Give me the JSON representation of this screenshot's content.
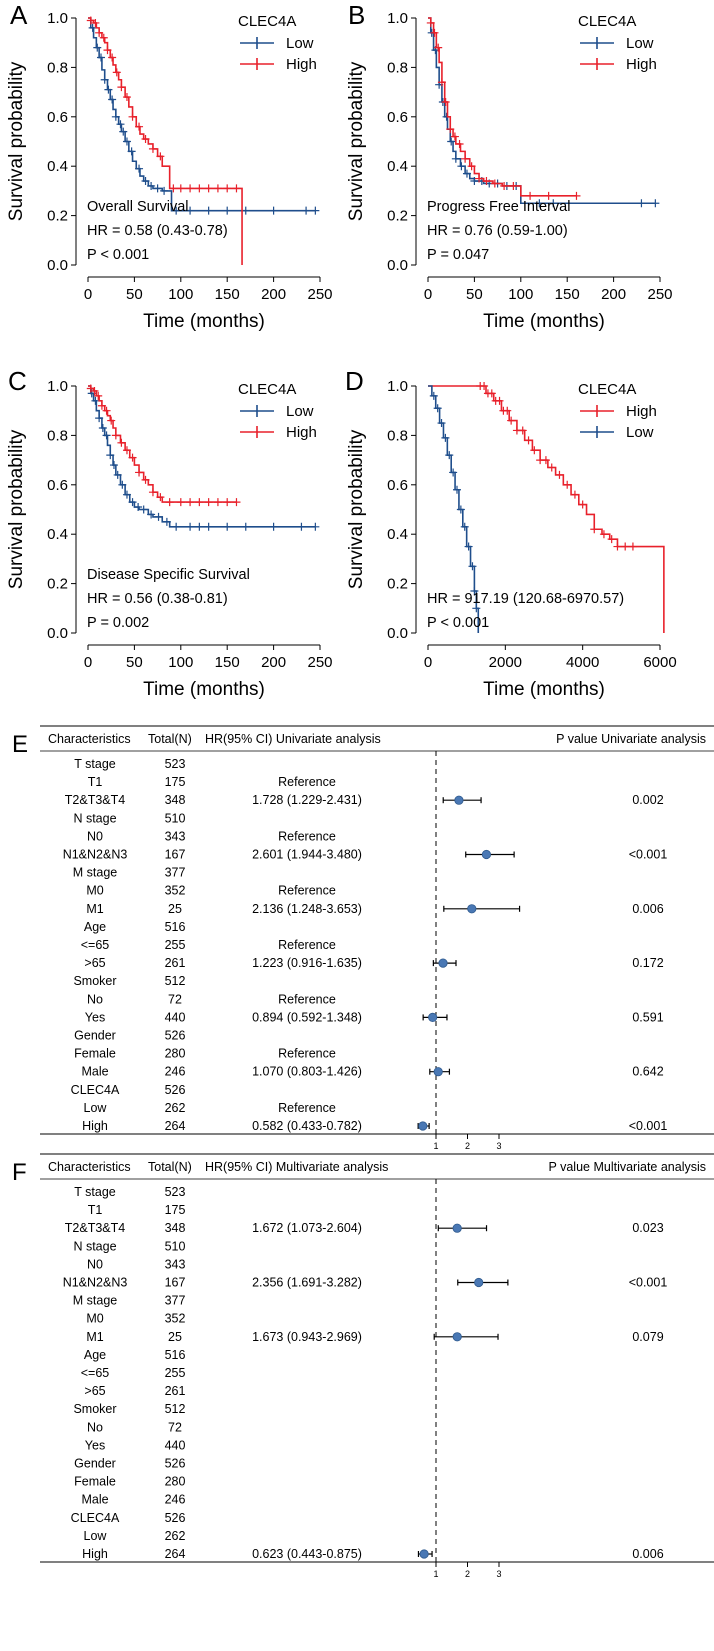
{
  "chart_data": [
    {
      "panel": "A",
      "type": "line",
      "xlabel": "Time (months)",
      "ylabel": "Survival probability",
      "xlim": [
        0,
        250
      ],
      "ylim": [
        0,
        1
      ],
      "xticks": [
        "0",
        "50",
        "100",
        "150",
        "200",
        "250"
      ],
      "yticks": [
        "0.0",
        "0.2",
        "0.4",
        "0.6",
        "0.8",
        "1.0"
      ],
      "legend_title": "CLEC4A",
      "legend_position": "top-right",
      "annotation_lines": [
        "Overall Survival",
        "HR = 0.58 (0.43-0.78)",
        "P < 0.001"
      ],
      "series": [
        {
          "name": "Low",
          "color": "#1f4e8c",
          "x": [
            0,
            3,
            6,
            9,
            12,
            15,
            18,
            21,
            24,
            27,
            30,
            33,
            36,
            40,
            44,
            48,
            52,
            56,
            60,
            65,
            70,
            75,
            80,
            85,
            90,
            120,
            150,
            200,
            245
          ],
          "y": [
            1,
            0.96,
            0.92,
            0.88,
            0.84,
            0.79,
            0.75,
            0.71,
            0.67,
            0.63,
            0.6,
            0.57,
            0.54,
            0.5,
            0.46,
            0.42,
            0.39,
            0.36,
            0.34,
            0.32,
            0.31,
            0.31,
            0.3,
            0.3,
            0.22,
            0.22,
            0.22,
            0.22,
            0.22
          ],
          "censor_x": [
            5,
            10,
            14,
            18,
            22,
            26,
            30,
            35,
            38,
            42,
            47,
            55,
            62,
            68,
            75,
            82,
            95,
            110,
            130,
            150,
            170,
            200,
            235,
            245
          ]
        },
        {
          "name": "High",
          "color": "#e8212b",
          "x": [
            0,
            3,
            6,
            9,
            12,
            15,
            18,
            21,
            24,
            27,
            30,
            33,
            36,
            40,
            44,
            48,
            52,
            56,
            60,
            65,
            70,
            75,
            80,
            88,
            120,
            150,
            166
          ],
          "y": [
            1,
            0.99,
            0.98,
            0.96,
            0.94,
            0.92,
            0.9,
            0.87,
            0.84,
            0.81,
            0.78,
            0.75,
            0.72,
            0.68,
            0.64,
            0.6,
            0.56,
            0.53,
            0.51,
            0.49,
            0.47,
            0.44,
            0.4,
            0.31,
            0.31,
            0.31,
            0
          ],
          "censor_x": [
            3,
            8,
            12,
            17,
            21,
            26,
            31,
            36,
            42,
            48,
            55,
            62,
            70,
            78,
            92,
            100,
            110,
            120,
            130,
            140,
            150,
            160
          ]
        }
      ]
    },
    {
      "panel": "B",
      "type": "line",
      "xlabel": "Time (months)",
      "ylabel": "Survival probability",
      "xlim": [
        0,
        250
      ],
      "ylim": [
        0,
        1
      ],
      "xticks": [
        "0",
        "50",
        "100",
        "150",
        "200",
        "250"
      ],
      "yticks": [
        "0.0",
        "0.2",
        "0.4",
        "0.6",
        "0.8",
        "1.0"
      ],
      "legend_title": "CLEC4A",
      "legend_position": "top-right",
      "annotation_lines": [
        "Progress Free Interval",
        "HR = 0.76 (0.59-1.00)",
        "P = 0.047"
      ],
      "series": [
        {
          "name": "Low",
          "color": "#1f4e8c",
          "x": [
            0,
            3,
            6,
            9,
            12,
            15,
            18,
            21,
            24,
            27,
            30,
            35,
            40,
            45,
            50,
            55,
            60,
            70,
            80,
            90,
            100,
            130,
            160,
            200,
            245
          ],
          "y": [
            1,
            0.94,
            0.87,
            0.8,
            0.73,
            0.66,
            0.6,
            0.55,
            0.5,
            0.46,
            0.43,
            0.4,
            0.37,
            0.35,
            0.34,
            0.34,
            0.33,
            0.33,
            0.32,
            0.32,
            0.25,
            0.25,
            0.25,
            0.25,
            0.25
          ],
          "censor_x": [
            4,
            8,
            12,
            16,
            20,
            25,
            30,
            36,
            42,
            50,
            58,
            66,
            75,
            85,
            95,
            120,
            135,
            230,
            245
          ]
        },
        {
          "name": "High",
          "color": "#e8212b",
          "x": [
            0,
            3,
            6,
            9,
            12,
            15,
            18,
            21,
            24,
            27,
            30,
            35,
            40,
            45,
            50,
            55,
            60,
            70,
            80,
            90,
            100,
            130,
            160
          ],
          "y": [
            1,
            0.98,
            0.94,
            0.88,
            0.82,
            0.74,
            0.66,
            0.6,
            0.55,
            0.52,
            0.49,
            0.46,
            0.43,
            0.4,
            0.37,
            0.35,
            0.34,
            0.33,
            0.32,
            0.32,
            0.28,
            0.28,
            0.28
          ],
          "censor_x": [
            3,
            7,
            11,
            15,
            19,
            24,
            29,
            34,
            40,
            47,
            55,
            63,
            72,
            82,
            92,
            110,
            130,
            160
          ]
        }
      ]
    },
    {
      "panel": "C",
      "type": "line",
      "xlabel": "Time (months)",
      "ylabel": "Survival probability",
      "xlim": [
        0,
        250
      ],
      "ylim": [
        0,
        1
      ],
      "xticks": [
        "0",
        "50",
        "100",
        "150",
        "200",
        "250"
      ],
      "yticks": [
        "0.0",
        "0.2",
        "0.4",
        "0.6",
        "0.8",
        "1.0"
      ],
      "legend_title": "CLEC4A",
      "legend_position": "top-right",
      "annotation_lines": [
        "Disease Specific Survival",
        "HR = 0.56 (0.38-0.81)",
        "P = 0.002"
      ],
      "series": [
        {
          "name": "Low",
          "color": "#1f4e8c",
          "x": [
            0,
            3,
            6,
            9,
            12,
            15,
            18,
            21,
            24,
            27,
            30,
            35,
            40,
            45,
            50,
            55,
            60,
            65,
            70,
            80,
            88,
            120,
            150,
            200,
            245
          ],
          "y": [
            1,
            0.97,
            0.94,
            0.9,
            0.87,
            0.83,
            0.8,
            0.76,
            0.72,
            0.68,
            0.64,
            0.6,
            0.56,
            0.53,
            0.51,
            0.5,
            0.5,
            0.48,
            0.47,
            0.45,
            0.43,
            0.43,
            0.43,
            0.43,
            0.43
          ],
          "censor_x": [
            4,
            8,
            12,
            16,
            20,
            24,
            28,
            32,
            37,
            42,
            48,
            54,
            60,
            68,
            76,
            85,
            95,
            110,
            120,
            130,
            150,
            170,
            200,
            230,
            245
          ]
        },
        {
          "name": "High",
          "color": "#e8212b",
          "x": [
            0,
            3,
            6,
            9,
            12,
            15,
            18,
            21,
            24,
            27,
            30,
            35,
            40,
            45,
            50,
            55,
            60,
            65,
            70,
            75,
            80,
            100,
            130,
            160
          ],
          "y": [
            1,
            0.99,
            0.98,
            0.96,
            0.94,
            0.92,
            0.9,
            0.88,
            0.86,
            0.83,
            0.8,
            0.77,
            0.74,
            0.71,
            0.68,
            0.65,
            0.62,
            0.6,
            0.57,
            0.55,
            0.53,
            0.53,
            0.53,
            0.53
          ],
          "censor_x": [
            3,
            7,
            11,
            15,
            20,
            25,
            30,
            36,
            42,
            48,
            55,
            62,
            70,
            78,
            88,
            100,
            110,
            120,
            130,
            140,
            150,
            160
          ]
        }
      ]
    },
    {
      "panel": "D",
      "type": "line",
      "xlabel": "Time (months)",
      "ylabel": "Survival probability",
      "xlim": [
        0,
        6000
      ],
      "ylim": [
        0,
        1
      ],
      "xticks": [
        "0",
        "2000",
        "4000",
        "6000"
      ],
      "yticks": [
        "0.0",
        "0.2",
        "0.4",
        "0.6",
        "0.8",
        "1.0"
      ],
      "legend_title": "CLEC4A",
      "legend_position": "top-right",
      "annotation_lines": [
        "HR = 917.19 (120.68-6970.57)",
        "P < 0.001"
      ],
      "series": [
        {
          "name": "High",
          "color": "#e8212b",
          "x": [
            0,
            1300,
            1500,
            1700,
            1900,
            2100,
            2300,
            2500,
            2700,
            2900,
            3100,
            3300,
            3500,
            3700,
            3900,
            4100,
            4300,
            4500,
            4700,
            4900,
            5200,
            5600,
            6100,
            6100
          ],
          "y": [
            1,
            1,
            0.97,
            0.94,
            0.9,
            0.86,
            0.82,
            0.78,
            0.74,
            0.7,
            0.67,
            0.64,
            0.6,
            0.56,
            0.52,
            0.48,
            0.42,
            0.4,
            0.38,
            0.35,
            0.35,
            0.35,
            0.35,
            0
          ],
          "censor_x": [
            1350,
            1450,
            1550,
            1650,
            1750,
            1850,
            1950,
            2050,
            2150,
            2300,
            2450,
            2600,
            2750,
            2900,
            3050,
            3200,
            3400,
            3600,
            3800,
            4000,
            4300,
            4550,
            4750,
            4900,
            5100,
            5300
          ]
        },
        {
          "name": "Low",
          "color": "#1f4e8c",
          "x": [
            0,
            100,
            200,
            300,
            400,
            500,
            600,
            700,
            800,
            900,
            1000,
            1100,
            1200,
            1250,
            1300
          ],
          "y": [
            1,
            0.96,
            0.91,
            0.85,
            0.79,
            0.72,
            0.65,
            0.58,
            0.5,
            0.43,
            0.35,
            0.27,
            0.17,
            0.1,
            0
          ],
          "censor_x": [
            150,
            250,
            350,
            450,
            550,
            650,
            750,
            850,
            950,
            1050,
            1150,
            1200,
            1250
          ]
        }
      ]
    },
    {
      "panel": "E",
      "type": "table",
      "headers": [
        "Characteristics",
        "Total(N)",
        "HR(95% CI) Univariate analysis",
        "P value Univariate analysis"
      ],
      "axis_ticks": [
        "1",
        "2",
        "3"
      ],
      "rows": [
        {
          "label": "T stage",
          "n": "523",
          "hr": "",
          "p": "",
          "group": true
        },
        {
          "label": "T1",
          "n": "175",
          "hr": "Reference",
          "p": ""
        },
        {
          "label": "T2&T3&T4",
          "n": "348",
          "hr": "1.728 (1.229-2.431)",
          "p": "0.002",
          "est": 1.728,
          "lo": 1.229,
          "hi": 2.431
        },
        {
          "label": "N stage",
          "n": "510",
          "hr": "",
          "p": "",
          "group": true
        },
        {
          "label": "N0",
          "n": "343",
          "hr": "Reference",
          "p": ""
        },
        {
          "label": "N1&N2&N3",
          "n": "167",
          "hr": "2.601 (1.944-3.480)",
          "p": "<0.001",
          "est": 2.601,
          "lo": 1.944,
          "hi": 3.48
        },
        {
          "label": "M stage",
          "n": "377",
          "hr": "",
          "p": "",
          "group": true
        },
        {
          "label": "M0",
          "n": "352",
          "hr": "Reference",
          "p": ""
        },
        {
          "label": "M1",
          "n": "25",
          "hr": "2.136 (1.248-3.653)",
          "p": "0.006",
          "est": 2.136,
          "lo": 1.248,
          "hi": 3.653
        },
        {
          "label": "Age",
          "n": "516",
          "hr": "",
          "p": "",
          "group": true
        },
        {
          "label": "<=65",
          "n": "255",
          "hr": "Reference",
          "p": ""
        },
        {
          "label": ">65",
          "n": "261",
          "hr": "1.223 (0.916-1.635)",
          "p": "0.172",
          "est": 1.223,
          "lo": 0.916,
          "hi": 1.635
        },
        {
          "label": "Smoker",
          "n": "512",
          "hr": "",
          "p": "",
          "group": true
        },
        {
          "label": "No",
          "n": "72",
          "hr": "Reference",
          "p": ""
        },
        {
          "label": "Yes",
          "n": "440",
          "hr": "0.894 (0.592-1.348)",
          "p": "0.591",
          "est": 0.894,
          "lo": 0.592,
          "hi": 1.348
        },
        {
          "label": "Gender",
          "n": "526",
          "hr": "",
          "p": "",
          "group": true
        },
        {
          "label": "Female",
          "n": "280",
          "hr": "Reference",
          "p": ""
        },
        {
          "label": "Male",
          "n": "246",
          "hr": "1.070 (0.803-1.426)",
          "p": "0.642",
          "est": 1.07,
          "lo": 0.803,
          "hi": 1.426
        },
        {
          "label": "CLEC4A",
          "n": "526",
          "hr": "",
          "p": "",
          "group": true
        },
        {
          "label": "Low",
          "n": "262",
          "hr": "Reference",
          "p": ""
        },
        {
          "label": "High",
          "n": "264",
          "hr": "0.582 (0.433-0.782)",
          "p": "<0.001",
          "est": 0.582,
          "lo": 0.433,
          "hi": 0.782
        }
      ]
    },
    {
      "panel": "F",
      "type": "table",
      "headers": [
        "Characteristics",
        "Total(N)",
        "HR(95% CI) Multivariate analysis",
        "P value Multivariate analysis"
      ],
      "axis_ticks": [
        "1",
        "2",
        "3"
      ],
      "rows": [
        {
          "label": "T stage",
          "n": "523",
          "hr": "",
          "p": "",
          "group": true
        },
        {
          "label": "T1",
          "n": "175",
          "hr": "",
          "p": ""
        },
        {
          "label": "T2&T3&T4",
          "n": "348",
          "hr": "1.672 (1.073-2.604)",
          "p": "0.023",
          "est": 1.672,
          "lo": 1.073,
          "hi": 2.604
        },
        {
          "label": "N stage",
          "n": "510",
          "hr": "",
          "p": "",
          "group": true
        },
        {
          "label": "N0",
          "n": "343",
          "hr": "",
          "p": ""
        },
        {
          "label": "N1&N2&N3",
          "n": "167",
          "hr": "2.356 (1.691-3.282)",
          "p": "<0.001",
          "est": 2.356,
          "lo": 1.691,
          "hi": 3.282
        },
        {
          "label": "M stage",
          "n": "377",
          "hr": "",
          "p": "",
          "group": true
        },
        {
          "label": "M0",
          "n": "352",
          "hr": "",
          "p": ""
        },
        {
          "label": "M1",
          "n": "25",
          "hr": "1.673 (0.943-2.969)",
          "p": "0.079",
          "est": 1.673,
          "lo": 0.943,
          "hi": 2.969
        },
        {
          "label": "Age",
          "n": "516",
          "hr": "",
          "p": "",
          "group": true
        },
        {
          "label": "<=65",
          "n": "255",
          "hr": "",
          "p": ""
        },
        {
          "label": ">65",
          "n": "261",
          "hr": "",
          "p": ""
        },
        {
          "label": "Smoker",
          "n": "512",
          "hr": "",
          "p": "",
          "group": true
        },
        {
          "label": "No",
          "n": "72",
          "hr": "",
          "p": ""
        },
        {
          "label": "Yes",
          "n": "440",
          "hr": "",
          "p": ""
        },
        {
          "label": "Gender",
          "n": "526",
          "hr": "",
          "p": "",
          "group": true
        },
        {
          "label": "Female",
          "n": "280",
          "hr": "",
          "p": ""
        },
        {
          "label": "Male",
          "n": "246",
          "hr": "",
          "p": ""
        },
        {
          "label": "CLEC4A",
          "n": "526",
          "hr": "",
          "p": "",
          "group": true
        },
        {
          "label": "Low",
          "n": "262",
          "hr": "",
          "p": ""
        },
        {
          "label": "High",
          "n": "264",
          "hr": "0.623 (0.443-0.875)",
          "p": "0.006",
          "est": 0.623,
          "lo": 0.443,
          "hi": 0.875
        }
      ]
    }
  ]
}
